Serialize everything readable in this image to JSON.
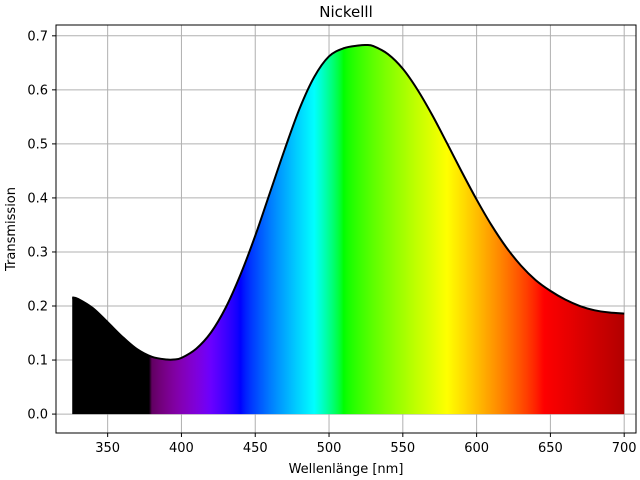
{
  "chart_data": {
    "type": "area",
    "title": "Nickelll",
    "xlabel": "Wellenlänge [nm]",
    "ylabel": "Transmission",
    "xlim": [
      315,
      708
    ],
    "ylim": [
      -0.035,
      0.72
    ],
    "grid": true,
    "x_ticks": [
      350,
      400,
      450,
      500,
      550,
      600,
      650,
      700
    ],
    "y_ticks": [
      0.0,
      0.1,
      0.2,
      0.3,
      0.4,
      0.5,
      0.6,
      0.7
    ],
    "x_tick_labels": [
      "350",
      "400",
      "450",
      "500",
      "550",
      "600",
      "650",
      "700"
    ],
    "y_tick_labels": [
      "0.0",
      "0.1",
      "0.2",
      "0.3",
      "0.4",
      "0.5",
      "0.6",
      "0.7"
    ],
    "fill": "visible-spectrum colors by wavelength",
    "line_color": "#000000",
    "series": [
      {
        "x": [
          326,
          330,
          340,
          350,
          360,
          370,
          380,
          390,
          395,
          400,
          410,
          420,
          430,
          440,
          450,
          460,
          470,
          480,
          490,
          500,
          510,
          520,
          525,
          530,
          540,
          550,
          560,
          570,
          580,
          590,
          600,
          610,
          620,
          630,
          640,
          650,
          660,
          670,
          680,
          690,
          700
        ],
        "y": [
          0.216,
          0.213,
          0.196,
          0.17,
          0.143,
          0.12,
          0.106,
          0.101,
          0.101,
          0.104,
          0.121,
          0.151,
          0.197,
          0.258,
          0.33,
          0.41,
          0.49,
          0.565,
          0.624,
          0.662,
          0.677,
          0.682,
          0.683,
          0.681,
          0.666,
          0.639,
          0.6,
          0.553,
          0.501,
          0.448,
          0.397,
          0.35,
          0.309,
          0.275,
          0.248,
          0.228,
          0.212,
          0.2,
          0.192,
          0.188,
          0.186
        ]
      }
    ]
  }
}
